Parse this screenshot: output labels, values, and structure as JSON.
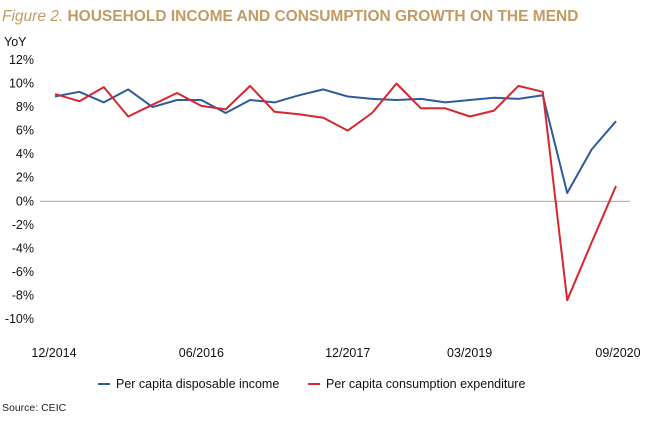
{
  "figure": {
    "number": "Figure 2.",
    "title": "HOUSEHOLD INCOME AND CONSUMPTION GROWTH ON THE MEND",
    "source": "Source: CEIC"
  },
  "chart_data": {
    "type": "line",
    "title": "HOUSEHOLD INCOME AND CONSUMPTION GROWTH ON THE MEND",
    "ylabel": "YoY",
    "xlabel": "",
    "ylim": [
      -10,
      12
    ],
    "yticks": [
      "12%",
      "10%",
      "8%",
      "6%",
      "4%",
      "2%",
      "0%",
      "-2%",
      "-4%",
      "-6%",
      "-8%",
      "-10%"
    ],
    "yticks_values": [
      12,
      10,
      8,
      6,
      4,
      2,
      0,
      -2,
      -4,
      -6,
      -8,
      -10
    ],
    "x": [
      "12/2014",
      "03/2015",
      "06/2015",
      "09/2015",
      "12/2015",
      "03/2016",
      "06/2016",
      "09/2016",
      "12/2016",
      "03/2017",
      "06/2017",
      "09/2017",
      "12/2017",
      "03/2018",
      "06/2018",
      "09/2018",
      "12/2018",
      "03/2019",
      "06/2019",
      "09/2019",
      "12/2019",
      "03/2020",
      "06/2020",
      "09/2020"
    ],
    "xticks": [
      {
        "label": "12/2014",
        "index": 0
      },
      {
        "label": "06/2016",
        "index": 6
      },
      {
        "label": "12/2017",
        "index": 12
      },
      {
        "label": "03/2019",
        "index": 17
      },
      {
        "label": "09/2020",
        "index": 23
      }
    ],
    "grid": false,
    "legend_position": "bottom",
    "series": [
      {
        "name": "Per capita disposable income",
        "color": "#2e5c9a",
        "values": [
          8.9,
          9.3,
          8.4,
          9.5,
          8.0,
          8.6,
          8.6,
          7.5,
          8.6,
          8.4,
          9.0,
          9.5,
          8.9,
          8.7,
          8.6,
          8.7,
          8.4,
          8.6,
          8.8,
          8.7,
          9.0,
          0.7,
          4.4,
          6.8
        ]
      },
      {
        "name": "Per capita consumption expenditure",
        "color": "#d7262e",
        "values": [
          9.1,
          8.5,
          9.7,
          7.2,
          8.2,
          9.2,
          8.1,
          7.8,
          9.8,
          7.6,
          7.4,
          7.1,
          6.0,
          7.5,
          10.0,
          7.9,
          7.9,
          7.2,
          7.7,
          9.8,
          9.3,
          -8.4,
          -3.5,
          1.3
        ]
      }
    ]
  }
}
